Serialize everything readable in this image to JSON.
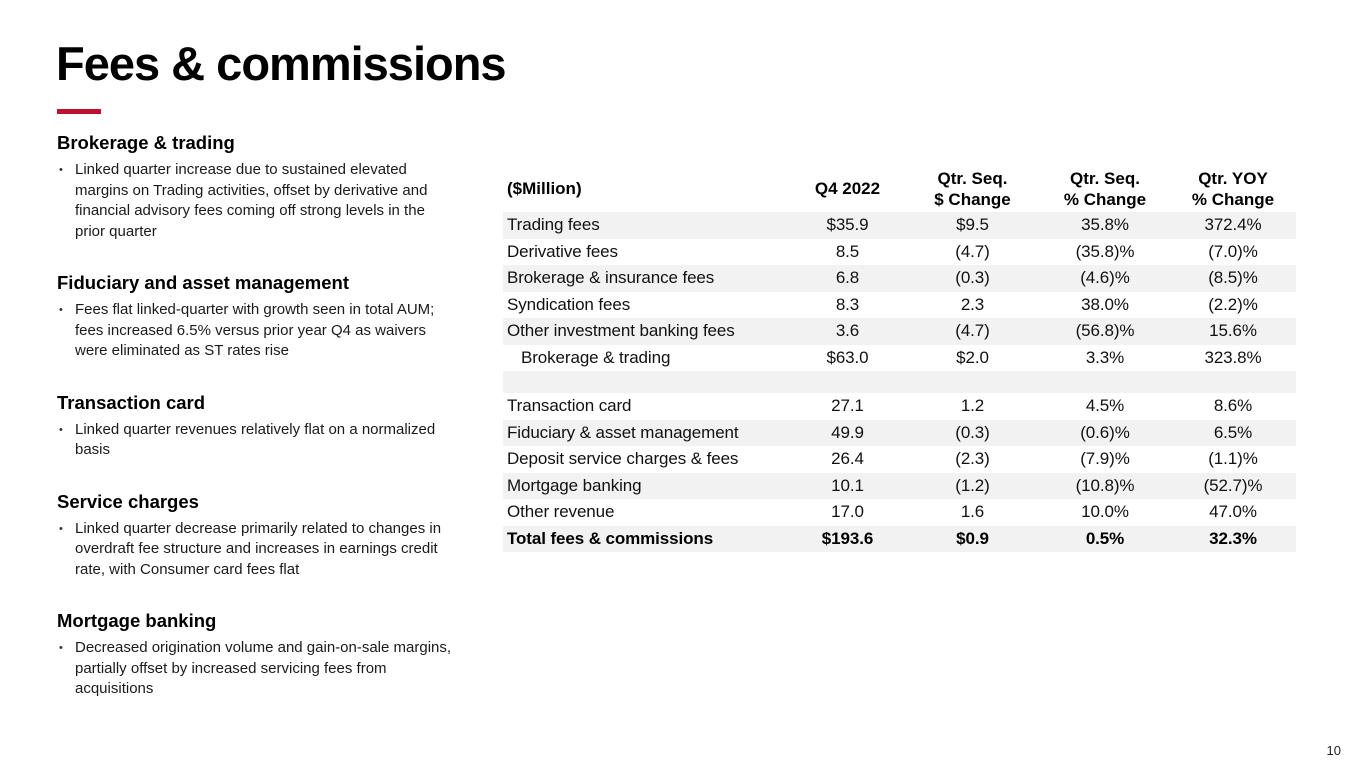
{
  "slide": {
    "title": "Fees & commissions",
    "page_number": "10",
    "accent_color": "#C01030",
    "bullet_char": "•"
  },
  "sections": [
    {
      "heading": "Brokerage & trading",
      "bullets": [
        "Linked quarter increase due to sustained elevated margins on Trading activities, offset by derivative and financial advisory fees coming off strong levels in the prior quarter"
      ]
    },
    {
      "heading": "Fiduciary and asset management",
      "bullets": [
        "Fees flat linked-quarter with growth seen in total AUM; fees increased 6.5% versus prior year Q4 as waivers were eliminated as ST rates rise"
      ]
    },
    {
      "heading": "Transaction card",
      "bullets": [
        "Linked quarter revenues relatively flat on a normalized basis"
      ]
    },
    {
      "heading": "Service charges",
      "bullets": [
        "Linked quarter decrease primarily related to changes in overdraft fee structure and increases in earnings credit rate, with Consumer card fees flat"
      ]
    },
    {
      "heading": "Mortgage banking",
      "bullets": [
        "Decreased origination volume and gain-on-sale margins, partially offset by increased servicing fees from acquisitions"
      ]
    }
  ],
  "table": {
    "headers": [
      "($Million)",
      "Q4 2022",
      "Qtr. Seq.\n$ Change",
      "Qtr. Seq.\n% Change",
      "Qtr. YOY\n% Change"
    ],
    "rows": [
      {
        "cells": [
          "Trading fees",
          "$35.9",
          "$9.5",
          "35.8%",
          "372.4%"
        ],
        "shaded": true
      },
      {
        "cells": [
          "Derivative fees",
          "8.5",
          "(4.7)",
          "(35.8)%",
          "(7.0)%"
        ],
        "shaded": false
      },
      {
        "cells": [
          "Brokerage & insurance fees",
          "6.8",
          "(0.3)",
          "(4.6)%",
          "(8.5)%"
        ],
        "shaded": true
      },
      {
        "cells": [
          "Syndication fees",
          "8.3",
          "2.3",
          "38.0%",
          "(2.2)%"
        ],
        "shaded": false
      },
      {
        "cells": [
          "Other investment banking fees",
          "3.6",
          "(4.7)",
          "(56.8)%",
          "15.6%"
        ],
        "shaded": true
      },
      {
        "cells": [
          "Brokerage & trading",
          "$63.0",
          "$2.0",
          "3.3%",
          "323.8%"
        ],
        "shaded": false,
        "indent": true
      },
      {
        "cells": [
          "",
          "",
          "",
          "",
          ""
        ],
        "shaded": true,
        "spacer": true
      },
      {
        "cells": [
          "Transaction card",
          "27.1",
          "1.2",
          "4.5%",
          "8.6%"
        ],
        "shaded": false
      },
      {
        "cells": [
          "Fiduciary & asset management",
          "49.9",
          "(0.3)",
          "(0.6)%",
          "6.5%"
        ],
        "shaded": true
      },
      {
        "cells": [
          "Deposit service charges & fees",
          "26.4",
          "(2.3)",
          "(7.9)%",
          "(1.1)%"
        ],
        "shaded": false
      },
      {
        "cells": [
          "Mortgage banking",
          "10.1",
          "(1.2)",
          "(10.8)%",
          "(52.7)%"
        ],
        "shaded": true
      },
      {
        "cells": [
          "Other revenue",
          "17.0",
          "1.6",
          "10.0%",
          "47.0%"
        ],
        "shaded": false
      },
      {
        "cells": [
          "Total fees & commissions",
          "$193.6",
          "$0.9",
          "0.5%",
          "32.3%"
        ],
        "shaded": true,
        "bold": true
      }
    ]
  }
}
